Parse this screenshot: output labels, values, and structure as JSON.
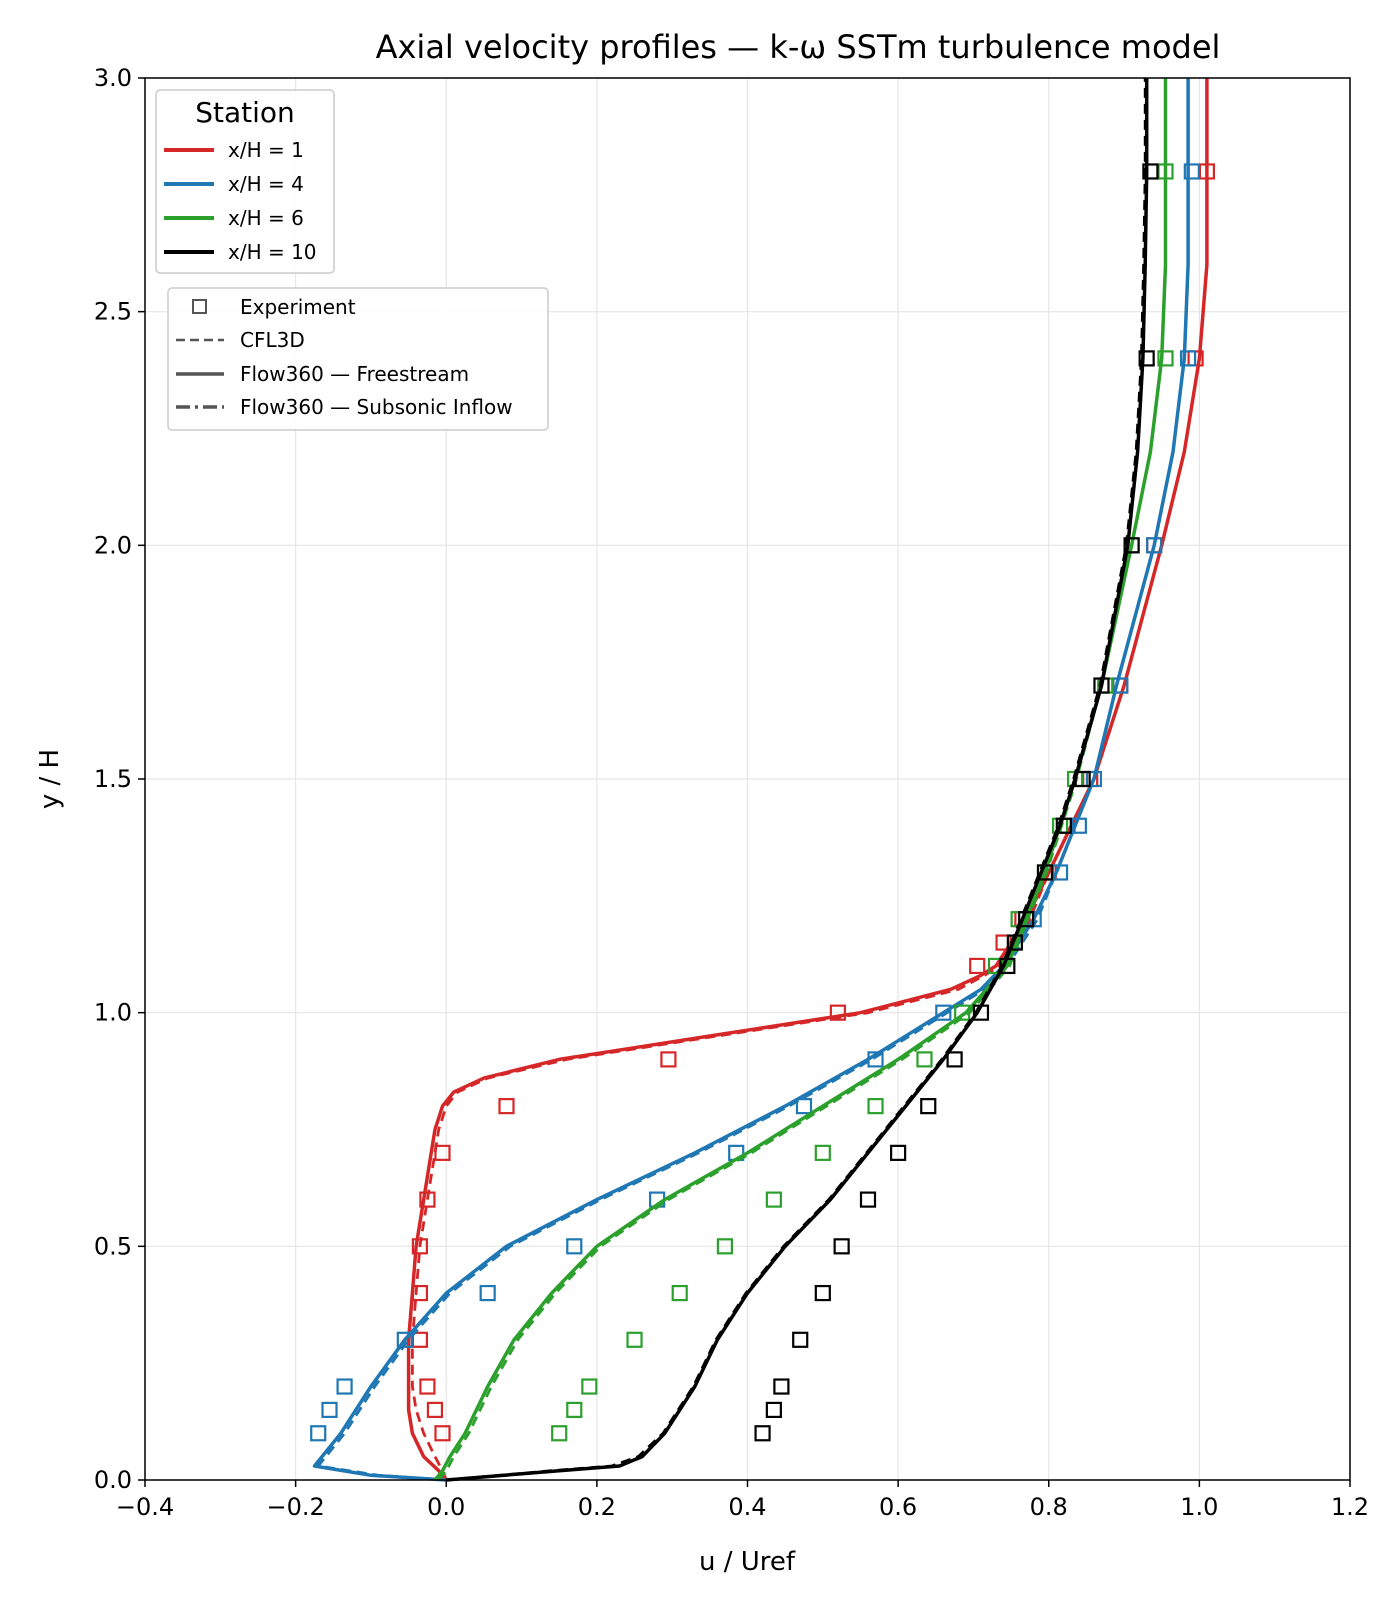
{
  "chart_data": {
    "type": "line",
    "title": "Axial velocity profiles — k-ω SSTm turbulence model",
    "xlabel": "u / Uref",
    "ylabel": "y / H",
    "xlim": [
      -0.4,
      1.2
    ],
    "ylim": [
      0.0,
      3.0
    ],
    "xticks": [
      -0.4,
      -0.2,
      0.0,
      0.2,
      0.4,
      0.6,
      0.8,
      1.0,
      1.2
    ],
    "yticks": [
      0.0,
      0.5,
      1.0,
      1.5,
      2.0,
      2.5,
      3.0
    ],
    "xtick_labels": [
      "−0.4",
      "−0.2",
      "0.0",
      "0.2",
      "0.4",
      "0.6",
      "0.8",
      "1.0",
      "1.2"
    ],
    "ytick_labels": [
      "0.0",
      "0.5",
      "1.0",
      "1.5",
      "2.0",
      "2.5",
      "3.0"
    ],
    "grid": true,
    "legend_station": {
      "title": "Station",
      "placement": "top-left",
      "entries": [
        "x/H = 1",
        "x/H = 4",
        "x/H = 6",
        "x/H = 10"
      ]
    },
    "legend_style": {
      "placement": "top-left",
      "entries": [
        "Experiment",
        "CFL3D",
        "Flow360 — Freestream",
        "Flow360 — Subsonic Inflow"
      ]
    },
    "series": [
      {
        "name": "x/H = 1",
        "color": "#d62728",
        "flow360": {
          "y": [
            0.0,
            0.02,
            0.05,
            0.1,
            0.15,
            0.2,
            0.3,
            0.4,
            0.5,
            0.6,
            0.7,
            0.75,
            0.8,
            0.83,
            0.86,
            0.9,
            0.95,
            1.0,
            1.05,
            1.08,
            1.1,
            1.15,
            1.2,
            1.3,
            1.4,
            1.5,
            1.7,
            2.0,
            2.2,
            2.4,
            2.6,
            2.8,
            3.0
          ],
          "u": [
            0.0,
            -0.01,
            -0.03,
            -0.045,
            -0.05,
            -0.05,
            -0.05,
            -0.045,
            -0.04,
            -0.03,
            -0.02,
            -0.015,
            -0.005,
            0.01,
            0.05,
            0.15,
            0.35,
            0.55,
            0.67,
            0.71,
            0.73,
            0.75,
            0.77,
            0.8,
            0.83,
            0.86,
            0.9,
            0.95,
            0.98,
            1.0,
            1.01,
            1.01,
            1.01
          ]
        },
        "cfl3d": {
          "y": [
            0.0,
            0.02,
            0.05,
            0.1,
            0.15,
            0.2,
            0.3,
            0.4,
            0.5,
            0.6,
            0.7,
            0.75,
            0.8,
            0.83,
            0.86,
            0.9,
            0.95,
            1.0,
            1.05,
            1.08,
            1.1,
            1.15,
            1.2,
            1.3,
            1.4,
            1.5,
            1.7,
            2.0,
            2.2,
            2.4,
            2.6,
            2.8,
            3.0
          ],
          "u": [
            0.0,
            -0.005,
            -0.015,
            -0.03,
            -0.04,
            -0.045,
            -0.045,
            -0.04,
            -0.035,
            -0.025,
            -0.015,
            -0.01,
            0.0,
            0.015,
            0.055,
            0.16,
            0.36,
            0.56,
            0.68,
            0.715,
            0.735,
            0.755,
            0.775,
            0.8,
            0.83,
            0.86,
            0.9,
            0.95,
            0.98,
            1.0,
            1.01,
            1.01,
            1.01
          ]
        },
        "experiment": {
          "y": [
            0.1,
            0.15,
            0.2,
            0.3,
            0.4,
            0.5,
            0.6,
            0.7,
            0.8,
            0.9,
            1.0,
            1.1,
            1.15,
            1.2,
            1.3,
            1.4,
            1.5,
            1.7,
            2.0,
            2.4,
            2.8
          ],
          "u": [
            -0.005,
            -0.015,
            -0.025,
            -0.035,
            -0.035,
            -0.035,
            -0.025,
            -0.005,
            0.08,
            0.295,
            0.52,
            0.705,
            0.74,
            0.765,
            0.8,
            0.825,
            0.855,
            0.895,
            0.94,
            0.995,
            1.01
          ]
        }
      },
      {
        "name": "x/H = 4",
        "color": "#1f77b4",
        "flow360": {
          "y": [
            0.0,
            0.01,
            0.03,
            0.1,
            0.2,
            0.3,
            0.4,
            0.5,
            0.6,
            0.7,
            0.8,
            0.9,
            1.0,
            1.05,
            1.1,
            1.2,
            1.3,
            1.4,
            1.5,
            1.7,
            2.0,
            2.2,
            2.4,
            2.6,
            2.8,
            3.0
          ],
          "u": [
            0.0,
            -0.1,
            -0.175,
            -0.14,
            -0.1,
            -0.055,
            0.0,
            0.08,
            0.2,
            0.33,
            0.45,
            0.56,
            0.66,
            0.71,
            0.74,
            0.78,
            0.81,
            0.835,
            0.86,
            0.89,
            0.94,
            0.965,
            0.98,
            0.985,
            0.985,
            0.985
          ]
        },
        "cfl3d": {
          "y": [
            0.0,
            0.01,
            0.03,
            0.1,
            0.2,
            0.3,
            0.4,
            0.5,
            0.6,
            0.7,
            0.8,
            0.9,
            1.0,
            1.05,
            1.1,
            1.2,
            1.3,
            1.4,
            1.5,
            1.7,
            2.0,
            2.2,
            2.4,
            2.6,
            2.8,
            3.0
          ],
          "u": [
            0.0,
            -0.09,
            -0.17,
            -0.135,
            -0.095,
            -0.05,
            0.005,
            0.085,
            0.205,
            0.335,
            0.455,
            0.565,
            0.665,
            0.715,
            0.745,
            0.785,
            0.81,
            0.835,
            0.86,
            0.89,
            0.94,
            0.965,
            0.98,
            0.985,
            0.985,
            0.985
          ]
        },
        "experiment": {
          "y": [
            0.1,
            0.15,
            0.2,
            0.3,
            0.4,
            0.5,
            0.6,
            0.7,
            0.8,
            0.9,
            1.0,
            1.2,
            1.3,
            1.4,
            1.5,
            1.7,
            2.0,
            2.4,
            2.8
          ],
          "u": [
            -0.17,
            -0.155,
            -0.135,
            -0.055,
            0.055,
            0.17,
            0.28,
            0.385,
            0.475,
            0.57,
            0.66,
            0.78,
            0.815,
            0.84,
            0.86,
            0.895,
            0.94,
            0.985,
            0.99
          ]
        }
      },
      {
        "name": "x/H = 6",
        "color": "#2ca02c",
        "flow360": {
          "y": [
            0.0,
            0.02,
            0.05,
            0.1,
            0.2,
            0.3,
            0.4,
            0.5,
            0.6,
            0.7,
            0.8,
            0.9,
            1.0,
            1.1,
            1.2,
            1.3,
            1.4,
            1.5,
            1.7,
            2.0,
            2.2,
            2.4,
            2.6,
            2.8,
            3.0
          ],
          "u": [
            -0.015,
            -0.005,
            0.005,
            0.025,
            0.055,
            0.09,
            0.14,
            0.2,
            0.29,
            0.4,
            0.5,
            0.6,
            0.69,
            0.745,
            0.77,
            0.795,
            0.815,
            0.835,
            0.87,
            0.91,
            0.935,
            0.95,
            0.955,
            0.955,
            0.955
          ]
        },
        "cfl3d": {
          "y": [
            0.0,
            0.02,
            0.05,
            0.1,
            0.2,
            0.3,
            0.4,
            0.5,
            0.6,
            0.7,
            0.8,
            0.9,
            1.0,
            1.1,
            1.2,
            1.3,
            1.4,
            1.5,
            1.7,
            2.0,
            2.2,
            2.4,
            2.6,
            2.8,
            3.0
          ],
          "u": [
            -0.01,
            0.0,
            0.01,
            0.03,
            0.06,
            0.095,
            0.145,
            0.205,
            0.295,
            0.405,
            0.505,
            0.605,
            0.695,
            0.748,
            0.772,
            0.797,
            0.817,
            0.837,
            0.87,
            0.91,
            0.935,
            0.95,
            0.955,
            0.955,
            0.955
          ]
        },
        "experiment": {
          "y": [
            0.1,
            0.15,
            0.2,
            0.3,
            0.4,
            0.5,
            0.6,
            0.7,
            0.8,
            0.9,
            1.0,
            1.1,
            1.2,
            1.3,
            1.4,
            1.5,
            1.7,
            2.0,
            2.4,
            2.8
          ],
          "u": [
            0.15,
            0.17,
            0.19,
            0.25,
            0.31,
            0.37,
            0.435,
            0.5,
            0.57,
            0.635,
            0.685,
            0.73,
            0.76,
            0.795,
            0.815,
            0.835,
            0.875,
            0.91,
            0.955,
            0.955
          ]
        }
      },
      {
        "name": "x/H = 10",
        "color": "#000000",
        "flow360": {
          "y": [
            0.0,
            0.02,
            0.03,
            0.05,
            0.1,
            0.2,
            0.3,
            0.4,
            0.5,
            0.6,
            0.7,
            0.8,
            0.9,
            1.0,
            1.1,
            1.2,
            1.3,
            1.4,
            1.5,
            1.7,
            2.0,
            2.2,
            2.4,
            2.6,
            2.8,
            3.0
          ],
          "u": [
            0.0,
            0.15,
            0.23,
            0.26,
            0.29,
            0.33,
            0.36,
            0.4,
            0.45,
            0.51,
            0.56,
            0.61,
            0.66,
            0.705,
            0.74,
            0.765,
            0.79,
            0.815,
            0.835,
            0.87,
            0.905,
            0.918,
            0.925,
            0.928,
            0.93,
            0.93
          ]
        },
        "cfl3d": {
          "y": [
            0.0,
            0.02,
            0.03,
            0.05,
            0.1,
            0.2,
            0.3,
            0.4,
            0.5,
            0.6,
            0.7,
            0.8,
            0.9,
            1.0,
            1.1,
            1.2,
            1.3,
            1.4,
            1.5,
            1.7,
            2.0,
            2.2,
            2.4,
            2.6,
            2.8,
            3.0
          ],
          "u": [
            0.0,
            0.14,
            0.22,
            0.255,
            0.288,
            0.328,
            0.358,
            0.398,
            0.448,
            0.508,
            0.558,
            0.608,
            0.658,
            0.703,
            0.738,
            0.763,
            0.788,
            0.813,
            0.833,
            0.868,
            0.903,
            0.916,
            0.923,
            0.926,
            0.928,
            0.928
          ]
        },
        "experiment": {
          "y": [
            0.1,
            0.15,
            0.2,
            0.3,
            0.4,
            0.5,
            0.6,
            0.7,
            0.8,
            0.9,
            1.0,
            1.1,
            1.15,
            1.2,
            1.3,
            1.4,
            1.5,
            1.7,
            2.0,
            2.4,
            2.8
          ],
          "u": [
            0.42,
            0.435,
            0.445,
            0.47,
            0.5,
            0.525,
            0.56,
            0.6,
            0.64,
            0.675,
            0.71,
            0.745,
            0.755,
            0.77,
            0.795,
            0.82,
            0.845,
            0.87,
            0.91,
            0.93,
            0.935
          ]
        }
      }
    ]
  }
}
